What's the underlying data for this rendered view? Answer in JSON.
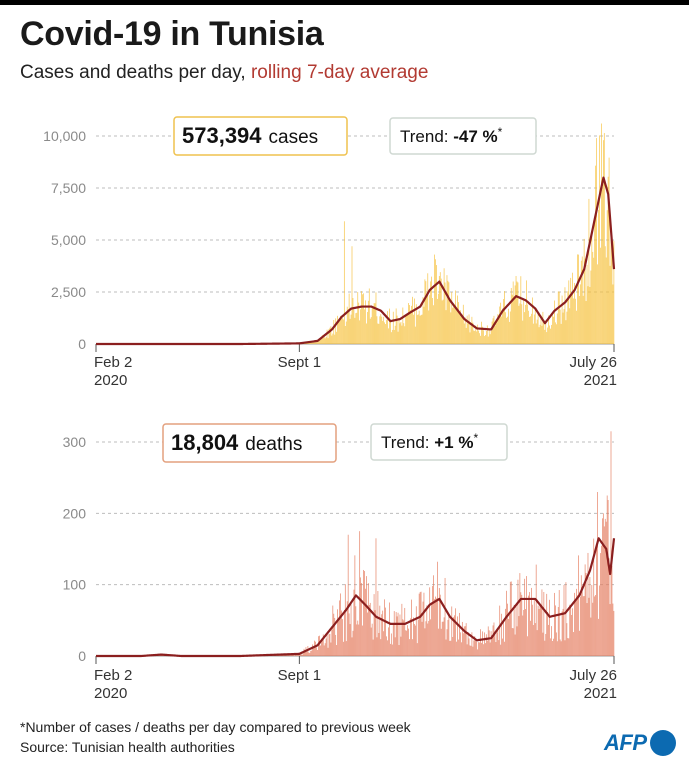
{
  "header": {
    "title": "Covid-19 in Tunisia",
    "subtitle_main": "Cases and deaths per day, ",
    "subtitle_accent": "rolling 7-day average"
  },
  "footer": {
    "note": "*Number of cases / deaths per day compared to previous week",
    "source": "Source: Tunisian health authorities",
    "logo": "AFP"
  },
  "colors": {
    "cases_bar": "#f6c13c",
    "deaths_bar": "#e47a5c",
    "line": "#8b1f1f",
    "grid": "#bdbdbd",
    "cases_box_border": "#efc24f",
    "deaths_box_border": "#e3a07e",
    "trend_box_border": "#cfd8d2",
    "logo": "#0c6ab1"
  },
  "chart_data": [
    {
      "id": "cases",
      "type": "bar",
      "overlay": "line",
      "ylim": [
        0,
        10000
      ],
      "yticks": [
        "10,000",
        "7,500",
        "5,000",
        "2,500",
        "0"
      ],
      "ytick_values": [
        10000,
        7500,
        5000,
        2500,
        0
      ],
      "xticks": [
        {
          "label": "Feb 2",
          "sub": "2020",
          "date": "2020-02-02"
        },
        {
          "label": "Sept 1",
          "sub": "",
          "date": "2020-09-01"
        },
        {
          "label": "July 26",
          "sub": "2021",
          "date": "2021-07-26"
        }
      ],
      "total_value": "573,394",
      "total_label": "cases",
      "trend_label": "Trend: ",
      "trend_value": "-47 %",
      "trend_mark": "*",
      "avg_series": {
        "name": "rolling 7-day average",
        "x": [
          "2020-02-02",
          "2020-07-01",
          "2020-09-01",
          "2020-09-20",
          "2020-10-05",
          "2020-10-15",
          "2020-10-25",
          "2020-11-05",
          "2020-11-15",
          "2020-11-25",
          "2020-12-05",
          "2020-12-15",
          "2020-12-25",
          "2021-01-05",
          "2021-01-15",
          "2021-01-25",
          "2021-02-05",
          "2021-02-20",
          "2021-03-05",
          "2021-03-20",
          "2021-04-01",
          "2021-04-15",
          "2021-04-25",
          "2021-05-05",
          "2021-05-15",
          "2021-05-25",
          "2021-06-05",
          "2021-06-15",
          "2021-06-25",
          "2021-07-05",
          "2021-07-15",
          "2021-07-20",
          "2021-07-25",
          "2021-07-26"
        ],
        "values": [
          0,
          0,
          30,
          150,
          700,
          1300,
          1700,
          1800,
          1800,
          1600,
          1100,
          1200,
          1500,
          1800,
          2600,
          3000,
          2100,
          1200,
          750,
          700,
          1600,
          2300,
          2100,
          1700,
          1000,
          1600,
          2000,
          2600,
          3600,
          5800,
          8000,
          7200,
          4200,
          3600
        ]
      },
      "bar_noise": 0.5,
      "bar_spikes": [
        {
          "date": "2020-10-18",
          "value": 5900
        },
        {
          "date": "2020-10-26",
          "value": 4700
        },
        {
          "date": "2021-01-20",
          "value": 4300
        },
        {
          "date": "2021-07-08",
          "value": 9900
        },
        {
          "date": "2021-07-15",
          "value": 9800
        }
      ]
    },
    {
      "id": "deaths",
      "type": "bar",
      "overlay": "line",
      "ylim": [
        0,
        300
      ],
      "yticks": [
        "300",
        "200",
        "100",
        "0"
      ],
      "ytick_values": [
        300,
        200,
        100,
        0
      ],
      "xticks": [
        {
          "label": "Feb 2",
          "sub": "2020",
          "date": "2020-02-02"
        },
        {
          "label": "Sept 1",
          "sub": "",
          "date": "2020-09-01"
        },
        {
          "label": "July 26",
          "sub": "2021",
          "date": "2021-07-26"
        }
      ],
      "total_value": "18,804",
      "total_label": "deaths",
      "trend_label": "Trend: ",
      "trend_value": "+1 %",
      "trend_mark": "*",
      "avg_series": {
        "name": "rolling 7-day average",
        "x": [
          "2020-02-02",
          "2020-03-20",
          "2020-04-10",
          "2020-05-01",
          "2020-07-01",
          "2020-09-01",
          "2020-09-20",
          "2020-10-05",
          "2020-10-20",
          "2020-10-30",
          "2020-11-10",
          "2020-11-20",
          "2020-12-05",
          "2020-12-20",
          "2021-01-05",
          "2021-01-15",
          "2021-01-25",
          "2021-02-05",
          "2021-02-20",
          "2021-03-05",
          "2021-03-20",
          "2021-04-05",
          "2021-04-20",
          "2021-05-05",
          "2021-05-20",
          "2021-06-05",
          "2021-06-20",
          "2021-07-01",
          "2021-07-10",
          "2021-07-18",
          "2021-07-22",
          "2021-07-26"
        ],
        "values": [
          0,
          0,
          2,
          0,
          0,
          3,
          15,
          40,
          65,
          85,
          70,
          55,
          45,
          45,
          55,
          72,
          80,
          55,
          35,
          22,
          25,
          55,
          80,
          80,
          55,
          60,
          85,
          120,
          165,
          150,
          115,
          165
        ]
      },
      "bar_noise": 0.7,
      "bar_spikes": [
        {
          "date": "2020-10-22",
          "value": 170
        },
        {
          "date": "2020-11-03",
          "value": 175
        },
        {
          "date": "2020-11-20",
          "value": 165
        },
        {
          "date": "2021-07-15",
          "value": 200
        },
        {
          "date": "2021-07-19",
          "value": 225
        },
        {
          "date": "2021-07-23",
          "value": 315
        }
      ]
    }
  ]
}
